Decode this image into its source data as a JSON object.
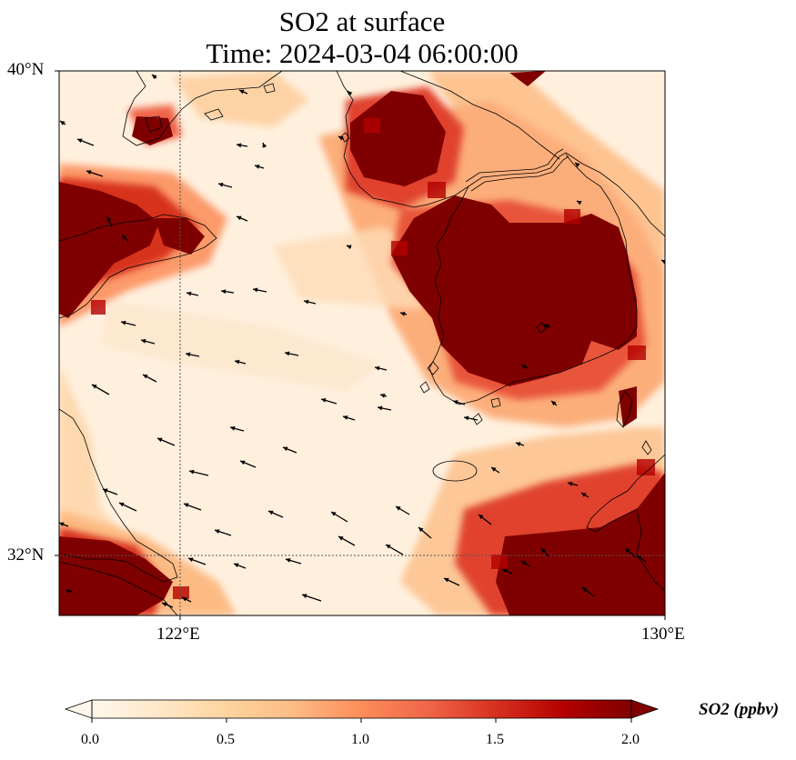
{
  "map": {
    "title_line1": "SO2 at surface",
    "title_line2": "Time: 2024-03-04 06:00:00",
    "lat_ticks": [
      "40°N",
      "32°N"
    ],
    "lon_ticks": [
      "122°E",
      "130°E"
    ]
  },
  "colorbar": {
    "label": "SO2 (ppbv)",
    "ticks": [
      "0.0",
      "0.5",
      "1.0",
      "1.5",
      "2.0"
    ],
    "range": [
      0.0,
      2.0
    ],
    "extend": "both",
    "colormap": [
      "#fff7ec",
      "#fee8c8",
      "#fdd49e",
      "#fdbb84",
      "#fc8d59",
      "#ef6548",
      "#d7301f",
      "#b30000",
      "#7f0000"
    ]
  },
  "chart_data": {
    "type": "heatmap",
    "variable": "SO2 (ppbv)",
    "time": "2024-03-04 06:00:00",
    "lon_range": [
      120,
      130
    ],
    "lat_range": [
      31,
      40
    ],
    "gridlines": {
      "lon": [
        122
      ],
      "lat": [
        32
      ]
    },
    "high_regions": [
      {
        "lon": [
          120.0,
          120.6
        ],
        "lat": [
          34.5,
          37.0
        ]
      },
      {
        "lon": [
          120.8,
          122.6
        ],
        "lat": [
          36.3,
          37.0
        ]
      },
      {
        "lon": [
          121.3,
          121.8
        ],
        "lat": [
          38.8,
          39.2
        ]
      },
      {
        "lon": [
          124.8,
          126.3
        ],
        "lat": [
          37.8,
          39.4
        ]
      },
      {
        "lon": [
          126.0,
          126.8
        ],
        "lat": [
          35.8,
          37.2
        ]
      },
      {
        "lon": [
          125.0,
          126.8
        ],
        "lat": [
          35.0,
          36.5
        ]
      },
      {
        "lon": [
          126.2,
          128.0
        ],
        "lat": [
          33.8,
          35.3
        ]
      },
      {
        "lon": [
          127.8,
          129.6
        ],
        "lat": [
          34.5,
          36.6
        ]
      },
      {
        "lon": [
          128.2,
          129.0
        ],
        "lat": [
          36.3,
          37.0
        ]
      },
      {
        "lon": [
          126.8,
          130.0
        ],
        "lat": [
          31.0,
          32.2
        ]
      },
      {
        "lon": [
          129.4,
          130.0
        ],
        "lat": [
          31.5,
          33.0
        ]
      },
      {
        "lon": [
          120.0,
          121.8
        ],
        "lat": [
          31.0,
          32.3
        ]
      }
    ]
  }
}
